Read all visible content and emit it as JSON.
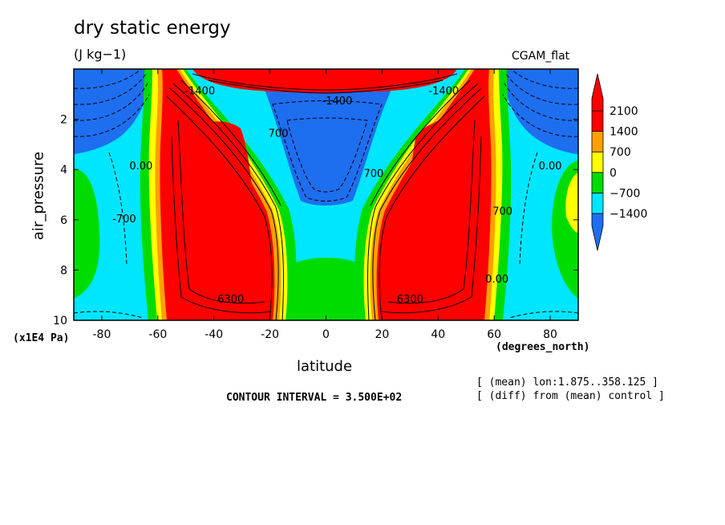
{
  "header": {
    "title": "dry static energy",
    "units": "(J kg−1)",
    "dataset": "CGAM_flat"
  },
  "footer": {
    "contour_interval": "CONTOUR INTERVAL = 3.500E+02",
    "note_lon": "[ (mean) lon:1.875..358.125 ]",
    "note_diff": "[ (diff) from (mean) control ]"
  },
  "chart_data": {
    "type": "heatmap",
    "subtype": "filled-contour",
    "title": "dry static energy",
    "subtitle": "(J kg−1)",
    "xlabel": "latitude",
    "xunit": "(degrees_north)",
    "ylabel": "air_pressure",
    "yunit": "(x1E4 Pa)",
    "xlim": [
      -90,
      90
    ],
    "ylim": [
      0,
      10
    ],
    "y_inverted": true,
    "x_ticks": [
      -80,
      -60,
      -40,
      -20,
      0,
      20,
      40,
      60,
      80
    ],
    "y_ticks": [
      2,
      4,
      6,
      8,
      10
    ],
    "colorbar": {
      "levels": [
        -1400,
        -700,
        0,
        700,
        1400,
        2100
      ],
      "labels": [
        "−1400",
        "−700",
        "0",
        "700",
        "1400",
        "2100"
      ],
      "colors": [
        "#1e6ef0",
        "#00e6ff",
        "#00dc00",
        "#ffff00",
        "#ffa000",
        "#ff0000"
      ]
    },
    "contour_labels": [
      {
        "text": "6300",
        "lat": -34,
        "p": 9.3
      },
      {
        "text": "6300",
        "lat": 30,
        "p": 9.3
      },
      {
        "text": "-700",
        "lat": -72,
        "p": 6.1
      },
      {
        "text": "700",
        "lat": -17,
        "p": 2.7
      },
      {
        "text": "700",
        "lat": 17,
        "p": 4.3
      },
      {
        "text": "700",
        "lat": 63,
        "p": 5.8
      },
      {
        "text": "0.00",
        "lat": -66,
        "p": 4.0
      },
      {
        "text": "0.00",
        "lat": 61,
        "p": 8.5
      },
      {
        "text": "0.00",
        "lat": 80,
        "p": 4.0
      },
      {
        "text": "-1400",
        "lat": 4,
        "p": 1.4
      },
      {
        "text": "-1400",
        "lat": -45,
        "p": 1.0
      },
      {
        "text": "-1400",
        "lat": 42,
        "p": 1.0
      }
    ]
  }
}
